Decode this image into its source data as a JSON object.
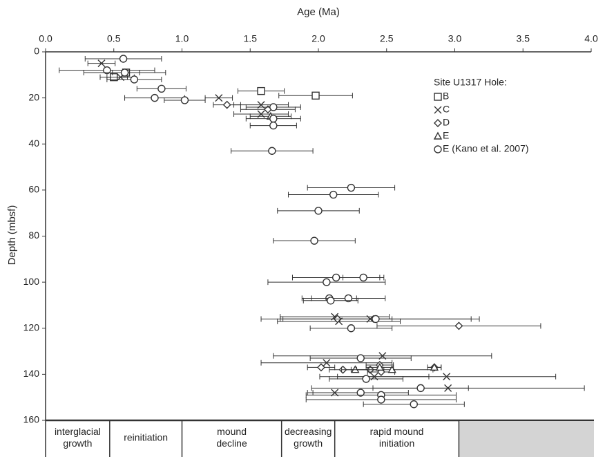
{
  "chart_data": {
    "type": "scatter",
    "x_label": "Age (Ma)",
    "y_label": "Depth (mbsf)",
    "xlim": [
      0,
      4
    ],
    "ylim": [
      0,
      160
    ],
    "xticks": [
      {
        "value": 0,
        "label": "0.0"
      },
      {
        "value": 0.5,
        "label": "0.5"
      },
      {
        "value": 1,
        "label": "1.0"
      },
      {
        "value": 1.5,
        "label": "1.5"
      },
      {
        "value": 2,
        "label": "2.0"
      },
      {
        "value": 2.5,
        "label": "2.5"
      },
      {
        "value": 3,
        "label": "3.0"
      },
      {
        "value": 3.5,
        "label": "3.5"
      },
      {
        "value": 4,
        "label": "4.0"
      }
    ],
    "yticks": [
      0,
      20,
      40,
      60,
      80,
      100,
      120,
      140,
      160
    ],
    "y_inverted": true,
    "x_axis_position": "top",
    "legend_title": "Site U1317 Hole:",
    "legend_position": "upper right",
    "series": [
      {
        "name": "B",
        "marker": "square",
        "color": "#333333",
        "x": [
          0.5,
          0.59,
          1.58,
          1.98
        ],
        "values": [
          11,
          9,
          17,
          19
        ],
        "errors": [
          0.1,
          0.1,
          0.17,
          0.27
        ]
      },
      {
        "name": "C",
        "marker": "cross",
        "color": "#333333",
        "x": [
          0.41,
          0.55,
          1.27,
          1.58,
          1.58,
          2.12,
          2.15,
          2.38,
          2.47,
          2.06,
          2.41,
          2.94,
          2.95,
          2.12
        ],
        "values": [
          5,
          11,
          20,
          23,
          27,
          115,
          117,
          116,
          132,
          135,
          141,
          141,
          146,
          148
        ],
        "errors": [
          0.1,
          0.1,
          0.1,
          0.2,
          0.2,
          0.4,
          0.45,
          0.8,
          0.8,
          0.48,
          0.4,
          0.8,
          1.0,
          0.2
        ]
      },
      {
        "name": "D",
        "marker": "diamond",
        "color": "#333333",
        "x": [
          1.33,
          1.63,
          2.14,
          3.03,
          2.02,
          2.18,
          2.38,
          2.45,
          2.46,
          2.85
        ],
        "values": [
          23,
          25,
          116,
          119,
          137,
          138,
          138,
          136,
          139,
          137
        ],
        "errors": [
          0.1,
          0.2,
          0.4,
          0.6,
          0.1,
          0.1,
          0.1,
          0.1,
          0.1,
          0.05
        ]
      },
      {
        "name": "E",
        "marker": "triangle",
        "color": "#333333",
        "x": [
          1.65,
          2.27,
          2.54,
          2.85,
          2.45
        ],
        "values": [
          28,
          138,
          138,
          137,
          137
        ],
        "errors": [
          0.15,
          0.1,
          0.3,
          0.05,
          0.1
        ]
      },
      {
        "name": "E (Kano et al. 2007)",
        "marker": "circle",
        "color": "#333333",
        "x": [
          0.57,
          0.45,
          0.58,
          0.65,
          0.85,
          0.8,
          1.02,
          1.67,
          1.67,
          1.67,
          1.66,
          2.24,
          2.11,
          2.0,
          1.97,
          2.13,
          2.33,
          2.06,
          2.08,
          2.22,
          2.09,
          2.42,
          2.24,
          2.31,
          2.35,
          2.75,
          2.31,
          2.46,
          2.46,
          2.7
        ],
        "values": [
          3,
          8,
          9,
          12,
          16,
          20,
          21,
          24,
          29,
          32,
          43,
          59,
          62,
          69,
          82,
          98,
          98,
          100,
          107,
          107,
          108,
          116,
          120,
          133,
          142,
          146,
          148,
          149,
          151,
          153
        ],
        "errors": [
          0.28,
          0.35,
          0.3,
          0.2,
          0.18,
          0.22,
          0.15,
          0.2,
          0.2,
          0.17,
          0.3,
          0.32,
          0.33,
          0.3,
          0.3,
          0.32,
          0.15,
          0.43,
          0.2,
          0.27,
          0.2,
          0.7,
          0.3,
          0.37,
          0.27,
          0.35,
          0.35,
          0.55,
          0.55,
          0.37
        ]
      }
    ],
    "phases": [
      {
        "label": [
          "interglacial",
          "growth"
        ],
        "start": 0,
        "end": 0.47
      },
      {
        "label": [
          "reinitiation"
        ],
        "start": 0.47,
        "end": 1.0
      },
      {
        "label": [
          "mound",
          "decline"
        ],
        "start": 1.0,
        "end": 1.73
      },
      {
        "label": [
          "decreasing",
          "growth"
        ],
        "start": 1.73,
        "end": 2.12
      },
      {
        "label": [
          "rapid mound",
          "initiation"
        ],
        "start": 2.12,
        "end": 3.03
      }
    ]
  }
}
